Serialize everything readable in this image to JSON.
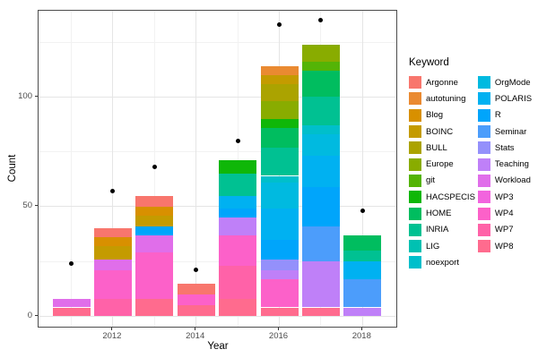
{
  "chart_data": {
    "type": "bar",
    "stacked": true,
    "title": "",
    "xlabel": "Year",
    "ylabel": "Count",
    "legend_title": "Keyword",
    "legend_position": "right",
    "grid": true,
    "x_ticks": [
      "2012",
      "2014",
      "2016",
      "2018"
    ],
    "x_tick_years": [
      2012,
      2014,
      2016,
      2018
    ],
    "x_minor_years": [
      2011,
      2013,
      2015,
      2017
    ],
    "y_ticks": [
      "0",
      "50",
      "100"
    ],
    "y_tick_values": [
      0,
      50,
      100
    ],
    "y_minor_values": [
      25,
      75,
      125
    ],
    "ylim": [
      -6,
      140
    ],
    "xlim": [
      2010.4,
      2018.6
    ],
    "keywords": [
      "Argonne",
      "autotuning",
      "Blog",
      "BOINC",
      "BULL",
      "Europe",
      "git",
      "HACSPECIS",
      "HOME",
      "INRIA",
      "LIG",
      "noexport",
      "OrgMode",
      "POLARIS",
      "R",
      "Seminar",
      "Stats",
      "Teaching",
      "Workload",
      "WP3",
      "WP4",
      "WP7",
      "WP8"
    ],
    "palette": {
      "Argonne": "#F8766D",
      "autotuning": "#EA8A31",
      "Blog": "#D89000",
      "BOINC": "#C49B00",
      "BULL": "#ABA300",
      "Europe": "#89AC00",
      "git": "#54B406",
      "HACSPECIS": "#0FB708",
      "HOME": "#00BD5F",
      "INRIA": "#00C192",
      "LIG": "#00C1B2",
      "noexport": "#00BFCB",
      "OrgMode": "#00BAE0",
      "POLARIS": "#00B1F1",
      "R": "#00A5FB",
      "Seminar": "#4C9DFB",
      "Stats": "#9490FB",
      "Teaching": "#BF80F8",
      "Workload": "#E06EEA",
      "WP3": "#F264DE",
      "WP4": "#FC61C9",
      "WP7": "#FF62A8",
      "WP8": "#FF6B8E"
    },
    "bars": [
      {
        "year": 2011,
        "total": 8,
        "segments": [
          {
            "keyword": "WP8",
            "value": 4
          },
          {
            "keyword": "Workload",
            "value": 4
          }
        ]
      },
      {
        "year": 2012,
        "total": 40,
        "segments": [
          {
            "keyword": "WP7",
            "value": 8
          },
          {
            "keyword": "WP4",
            "value": 13
          },
          {
            "keyword": "Workload",
            "value": 5
          },
          {
            "keyword": "BOINC",
            "value": 6
          },
          {
            "keyword": "Blog",
            "value": 4
          },
          {
            "keyword": "Argonne",
            "value": 4
          }
        ]
      },
      {
        "year": 2013,
        "total": 55,
        "segments": [
          {
            "keyword": "WP8",
            "value": 8
          },
          {
            "keyword": "WP4",
            "value": 21
          },
          {
            "keyword": "Workload",
            "value": 8
          },
          {
            "keyword": "R",
            "value": 4
          },
          {
            "keyword": "BOINC",
            "value": 5
          },
          {
            "keyword": "Blog",
            "value": 4
          },
          {
            "keyword": "Argonne",
            "value": 5
          }
        ]
      },
      {
        "year": 2014,
        "total": 15,
        "segments": [
          {
            "keyword": "WP8",
            "value": 5
          },
          {
            "keyword": "WP4",
            "value": 5
          },
          {
            "keyword": "Argonne",
            "value": 5
          }
        ]
      },
      {
        "year": 2015,
        "total": 71,
        "segments": [
          {
            "keyword": "WP8",
            "value": 8
          },
          {
            "keyword": "WP7",
            "value": 15
          },
          {
            "keyword": "WP4",
            "value": 14
          },
          {
            "keyword": "Teaching",
            "value": 8
          },
          {
            "keyword": "R",
            "value": 4
          },
          {
            "keyword": "POLARIS",
            "value": 6
          },
          {
            "keyword": "INRIA",
            "value": 10
          },
          {
            "keyword": "HACSPECIS",
            "value": 6
          }
        ]
      },
      {
        "year": 2016,
        "total": 114,
        "segments": [
          {
            "keyword": "WP8",
            "value": 4
          },
          {
            "keyword": "WP4",
            "value": 13
          },
          {
            "keyword": "Teaching",
            "value": 4
          },
          {
            "keyword": "Stats",
            "value": 5
          },
          {
            "keyword": "R",
            "value": 9
          },
          {
            "keyword": "POLARIS",
            "value": 14
          },
          {
            "keyword": "OrgMode",
            "value": 12
          },
          {
            "keyword": "noexport",
            "value": 3
          },
          {
            "keyword": "INRIA",
            "value": 13
          },
          {
            "keyword": "HOME",
            "value": 9
          },
          {
            "keyword": "HACSPECIS",
            "value": 4
          },
          {
            "keyword": "Europe",
            "value": 8
          },
          {
            "keyword": "BULL",
            "value": 8
          },
          {
            "keyword": "BOINC",
            "value": 4
          },
          {
            "keyword": "autotuning",
            "value": 4
          }
        ]
      },
      {
        "year": 2017,
        "total": 124,
        "segments": [
          {
            "keyword": "WP8",
            "value": 4
          },
          {
            "keyword": "Teaching",
            "value": 21
          },
          {
            "keyword": "Seminar",
            "value": 16
          },
          {
            "keyword": "R",
            "value": 18
          },
          {
            "keyword": "POLARIS",
            "value": 14
          },
          {
            "keyword": "OrgMode",
            "value": 10
          },
          {
            "keyword": "noexport",
            "value": 4
          },
          {
            "keyword": "INRIA",
            "value": 13
          },
          {
            "keyword": "HOME",
            "value": 12
          },
          {
            "keyword": "git",
            "value": 4
          },
          {
            "keyword": "Europe",
            "value": 8
          }
        ]
      },
      {
        "year": 2018,
        "total": 37,
        "segments": [
          {
            "keyword": "Teaching",
            "value": 4
          },
          {
            "keyword": "Seminar",
            "value": 13
          },
          {
            "keyword": "POLARIS",
            "value": 8
          },
          {
            "keyword": "INRIA",
            "value": 5
          },
          {
            "keyword": "HOME",
            "value": 7
          }
        ]
      }
    ],
    "points": {
      "label": "total-count-dot",
      "years": [
        2011,
        2012,
        2013,
        2014,
        2015,
        2016,
        2017,
        2018
      ],
      "values": [
        24,
        57,
        68,
        21,
        80,
        133,
        135,
        48
      ]
    }
  }
}
